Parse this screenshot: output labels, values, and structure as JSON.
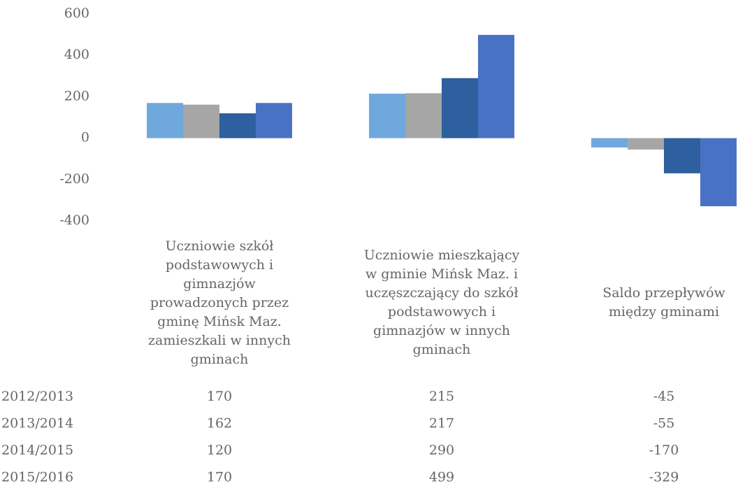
{
  "chart_data": {
    "type": "bar",
    "categories": [
      "Uczniowie szkół podstawowych i gimnazjów prowadzonych przez gminę Mińsk Maz. zamieszkali w innych gminach",
      "Uczniowie mieszkający w gminie Mińsk Maz. i uczęszczający do szkół podstawowych i gimnazjów w innych gminach",
      "Saldo przepływów między gminami"
    ],
    "series": [
      {
        "name": "2012/2013",
        "color": "#6fa8dc",
        "values": [
          170,
          215,
          -45
        ]
      },
      {
        "name": "2013/2014",
        "color": "#a6a6a6",
        "values": [
          162,
          217,
          -55
        ]
      },
      {
        "name": "2014/2015",
        "color": "#2e5f9e",
        "values": [
          120,
          290,
          -170
        ]
      },
      {
        "name": "2015/2016",
        "color": "#4a72c4",
        "values": [
          170,
          499,
          -329
        ]
      }
    ],
    "ylim": [
      -400,
      600
    ],
    "yticks": [
      -400,
      -200,
      0,
      200,
      400,
      600
    ],
    "grid": false
  }
}
